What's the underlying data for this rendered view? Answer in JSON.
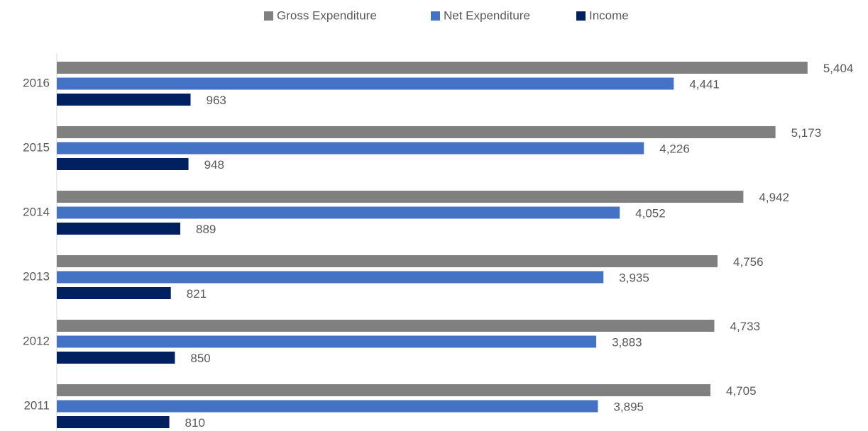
{
  "chart_data": {
    "type": "bar",
    "orientation": "horizontal",
    "categories": [
      "2011",
      "2012",
      "2013",
      "2014",
      "2015",
      "2016"
    ],
    "series": [
      {
        "name": "Gross Expenditure",
        "color": "#808080",
        "values": [
          4705,
          4733,
          4756,
          4942,
          5173,
          5404
        ],
        "value_labels": [
          "4,705",
          "4,733",
          "4,756",
          "4,942",
          "5,173",
          "5,404"
        ]
      },
      {
        "name": "Net Expenditure",
        "color": "#4472c4",
        "values": [
          3895,
          3883,
          3935,
          4052,
          4226,
          4441
        ],
        "value_labels": [
          "3,895",
          "3,883",
          "3,935",
          "4,052",
          "4,226",
          "4,441"
        ]
      },
      {
        "name": "Income",
        "color": "#002060",
        "values": [
          810,
          850,
          821,
          889,
          948,
          963
        ],
        "value_labels": [
          "810",
          "850",
          "821",
          "889",
          "948",
          "963"
        ]
      }
    ],
    "xlim": [
      0,
      6000
    ],
    "legend": "top"
  }
}
